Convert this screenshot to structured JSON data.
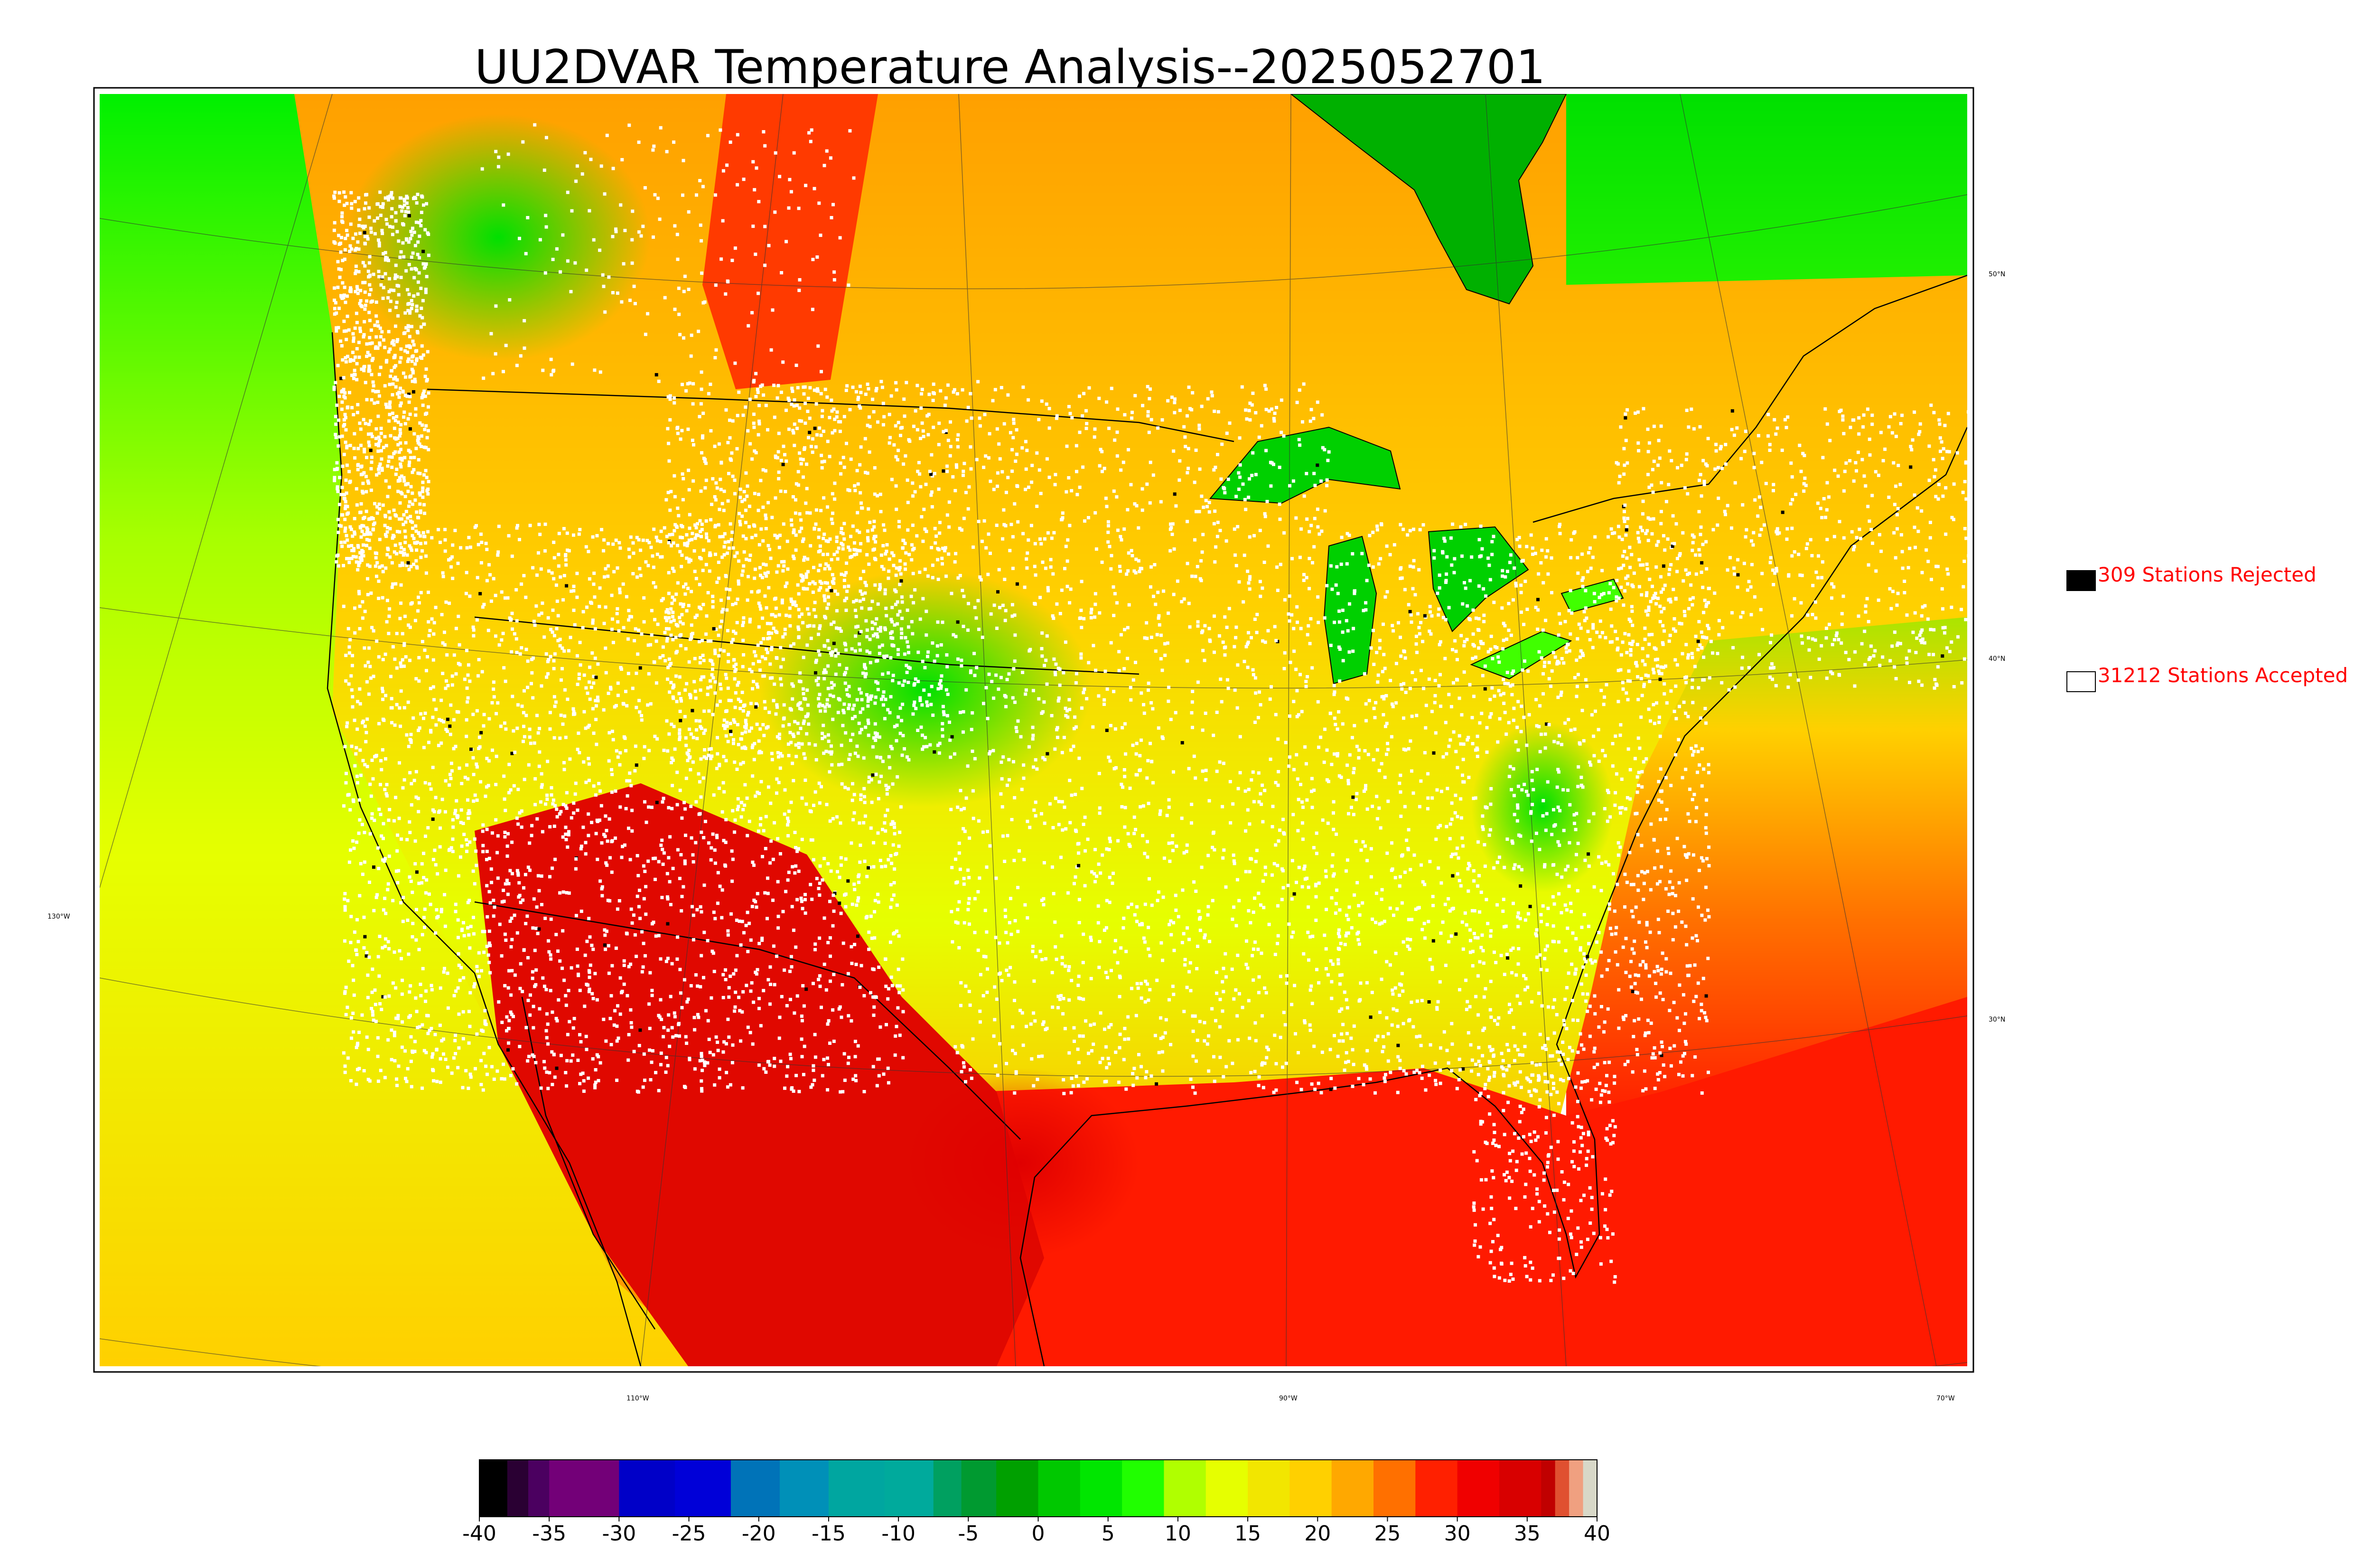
{
  "title": "UU2DVAR Temperature Analysis--2025052701",
  "legend": {
    "rejected": {
      "label": "309 Stations Rejected",
      "swatch_color": "#000000",
      "text_color": "#ff0000"
    },
    "accepted": {
      "label": "31212 Stations Accepted",
      "swatch_color": "#ffffff",
      "text_color": "#ff0000"
    }
  },
  "map": {
    "parallel_labels": [
      "50°N",
      "40°N",
      "30°N"
    ],
    "meridian_labels": [
      "130°W",
      "110°W",
      "90°W",
      "70°W"
    ],
    "colors": {
      "hot": "#ff1a00",
      "warm": "#ffa500",
      "mild": "#e6ff00",
      "cool": "#00ff00",
      "cold_lake": "#00b000",
      "station": "#ffffff",
      "rejected_station": "#000000"
    }
  },
  "colorbar": {
    "ticks": [
      "-40",
      "-35",
      "-30",
      "-25",
      "-20",
      "-15",
      "-10",
      "-5",
      "0",
      "5",
      "10",
      "15",
      "20",
      "25",
      "30",
      "35",
      "40"
    ],
    "range": [
      -40,
      40
    ],
    "bands": [
      {
        "from": -40,
        "to": -38,
        "color": "#000000"
      },
      {
        "from": -38,
        "to": -36.5,
        "color": "#2a0033"
      },
      {
        "from": -36.5,
        "to": -35,
        "color": "#4b0060"
      },
      {
        "from": -35,
        "to": -30,
        "color": "#730078"
      },
      {
        "from": -30,
        "to": -26,
        "color": "#0000c8"
      },
      {
        "from": -26,
        "to": -22,
        "color": "#0000d8"
      },
      {
        "from": -22,
        "to": -18.5,
        "color": "#0073b8"
      },
      {
        "from": -18.5,
        "to": -15,
        "color": "#0090b8"
      },
      {
        "from": -15,
        "to": -11,
        "color": "#00a6a0"
      },
      {
        "from": -11,
        "to": -7.5,
        "color": "#00aa9c"
      },
      {
        "from": -7.5,
        "to": -5.5,
        "color": "#00a060"
      },
      {
        "from": -5.5,
        "to": -3,
        "color": "#009a30"
      },
      {
        "from": -3,
        "to": 0,
        "color": "#00a000"
      },
      {
        "from": 0,
        "to": 3,
        "color": "#00c800"
      },
      {
        "from": 3,
        "to": 6,
        "color": "#00e600"
      },
      {
        "from": 6,
        "to": 9,
        "color": "#20ff00"
      },
      {
        "from": 9,
        "to": 12,
        "color": "#b0ff00"
      },
      {
        "from": 12,
        "to": 15,
        "color": "#e6ff00"
      },
      {
        "from": 15,
        "to": 18,
        "color": "#f2e600"
      },
      {
        "from": 18,
        "to": 21,
        "color": "#ffd000"
      },
      {
        "from": 21,
        "to": 24,
        "color": "#ffa800"
      },
      {
        "from": 24,
        "to": 27,
        "color": "#ff7000"
      },
      {
        "from": 27,
        "to": 30,
        "color": "#ff2000"
      },
      {
        "from": 30,
        "to": 33,
        "color": "#f00000"
      },
      {
        "from": 33,
        "to": 36,
        "color": "#d80000"
      },
      {
        "from": 36,
        "to": 37,
        "color": "#c00000"
      },
      {
        "from": 37,
        "to": 38,
        "color": "#e05030"
      },
      {
        "from": 38,
        "to": 39,
        "color": "#f0a080"
      },
      {
        "from": 39,
        "to": 40,
        "color": "#d8d8c8"
      }
    ]
  }
}
